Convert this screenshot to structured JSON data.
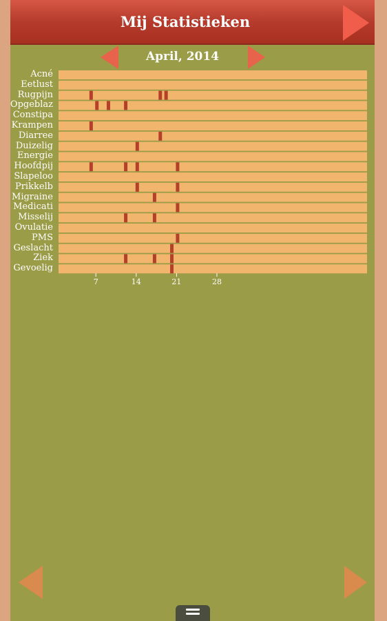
{
  "app": {
    "title": "Mij Statistieken"
  },
  "nav": {
    "month_label": "April, 2014"
  },
  "colors": {
    "header": "#b53b2c",
    "background": "#9a9c47",
    "row": "#f2b56e",
    "mark": "#b4402a",
    "arrow": "#e8634b"
  },
  "icons": {
    "next_screen": "triangle-right-icon",
    "prev_month": "triangle-left-icon",
    "next_month": "triangle-right-icon",
    "menu": "menu-lines-icon"
  },
  "chart_data": {
    "type": "heatmap",
    "x_ticks": [
      "7",
      "14",
      "21",
      "28"
    ],
    "x_range": [
      1,
      30
    ],
    "rows": [
      {
        "label": "Acné",
        "days": []
      },
      {
        "label": "Eetlust",
        "days": []
      },
      {
        "label": "Rugpijn",
        "days": [
          6,
          18,
          19
        ]
      },
      {
        "label": "Opgeblaz",
        "days": [
          7,
          9,
          12
        ]
      },
      {
        "label": "Constipa",
        "days": []
      },
      {
        "label": "Krampen",
        "days": [
          6
        ]
      },
      {
        "label": "Diarree",
        "days": [
          18
        ]
      },
      {
        "label": "Duizelig",
        "days": [
          14
        ]
      },
      {
        "label": "Energie",
        "days": []
      },
      {
        "label": "Hoofdpij",
        "days": [
          6,
          12,
          14,
          21
        ]
      },
      {
        "label": "Slapeloo",
        "days": []
      },
      {
        "label": "Prikkelb",
        "days": [
          14,
          21
        ]
      },
      {
        "label": "Migraine",
        "days": [
          17
        ]
      },
      {
        "label": "Medicati",
        "days": [
          21
        ]
      },
      {
        "label": "Misselij",
        "days": [
          12,
          17
        ]
      },
      {
        "label": "Ovulatie",
        "days": []
      },
      {
        "label": "PMS",
        "days": [
          21
        ]
      },
      {
        "label": "Geslacht",
        "days": [
          20
        ]
      },
      {
        "label": "Ziek",
        "days": [
          12,
          17,
          20
        ]
      },
      {
        "label": "Gevoelig",
        "days": [
          20
        ]
      }
    ]
  }
}
